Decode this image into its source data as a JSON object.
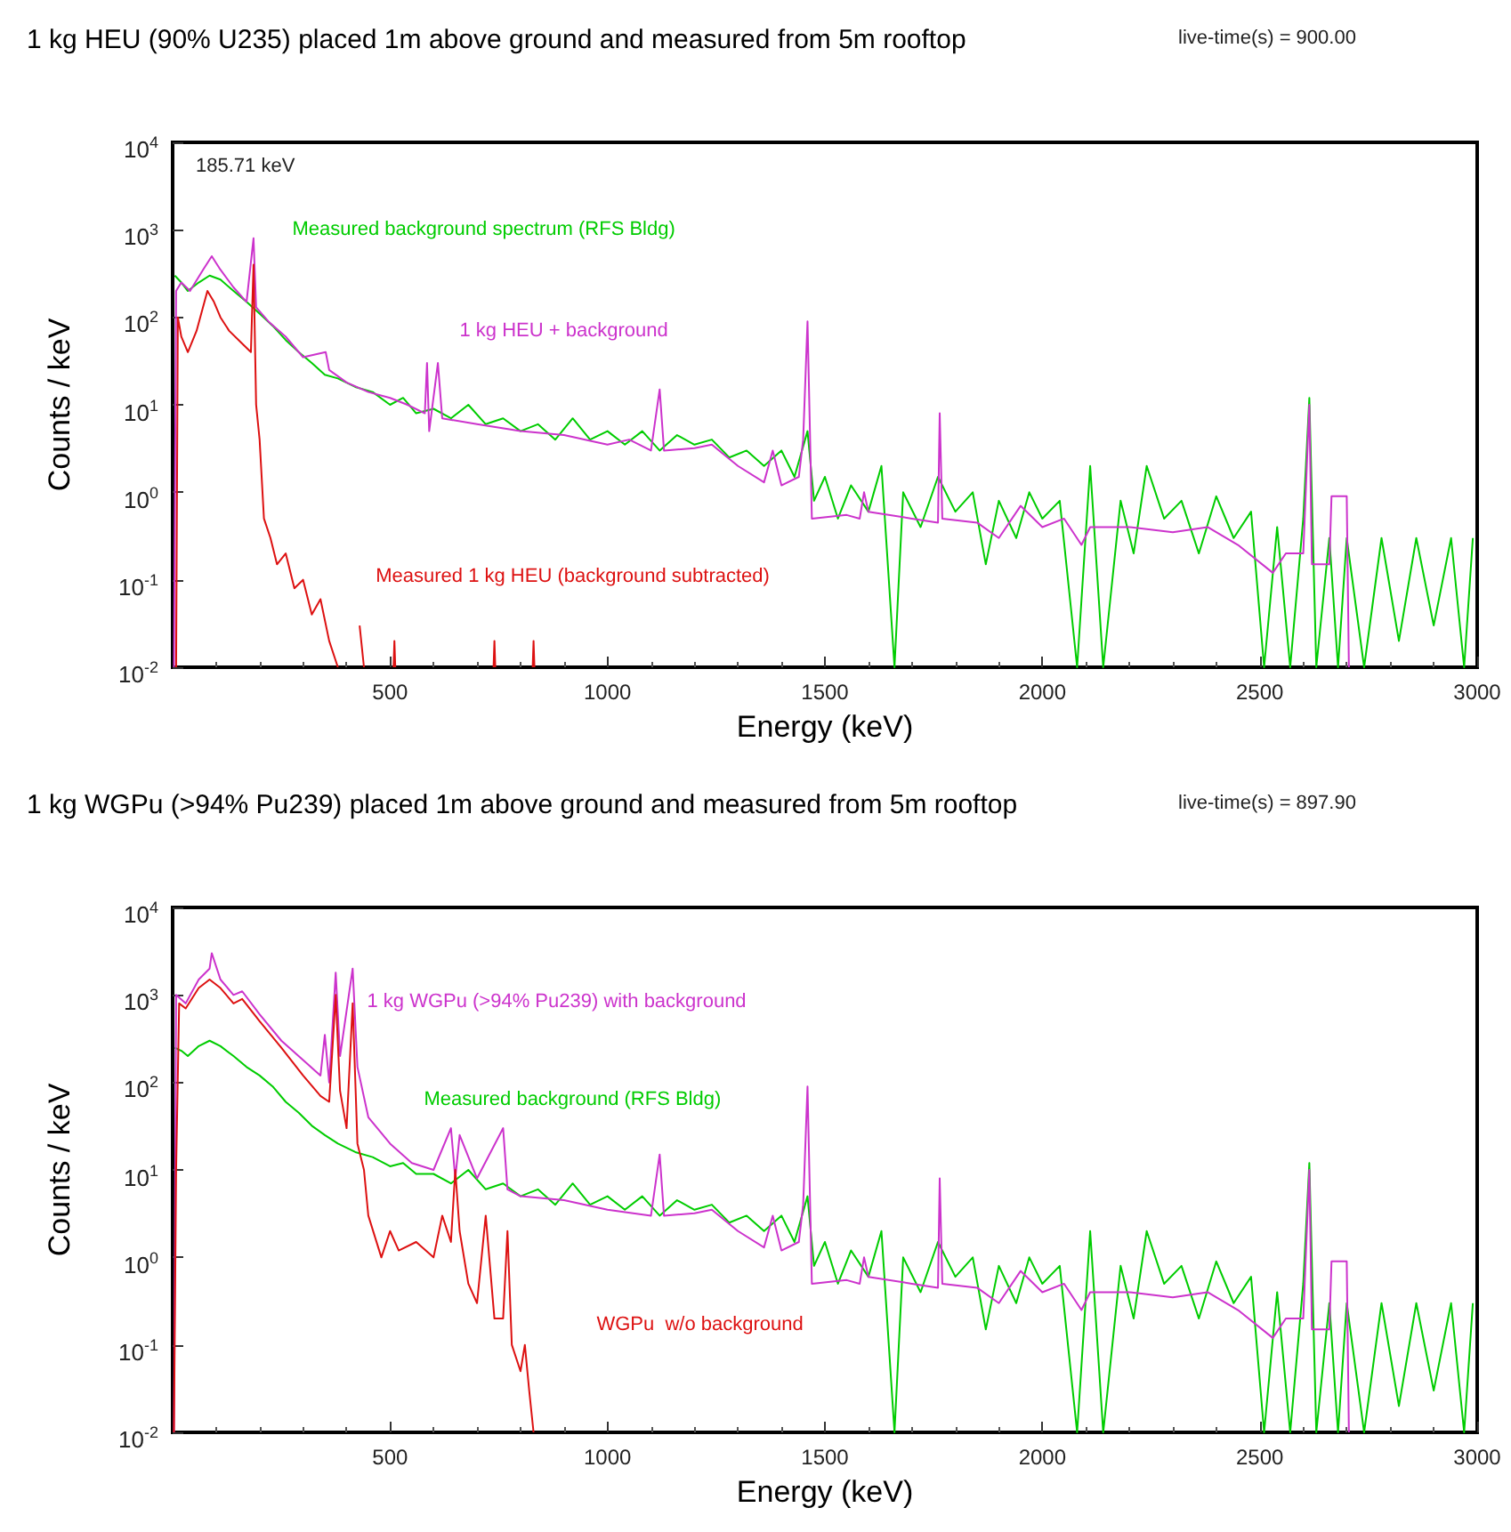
{
  "chart_data": [
    {
      "type": "line",
      "title": "1 kg HEU (90% U235) placed 1m above ground and measured from 5m rooftop",
      "xlabel": "Energy (keV)",
      "ylabel": "Counts / keV",
      "annotations": [
        "live-time(s) = 900.00",
        "185.71 keV"
      ],
      "log": "y",
      "xlim": [
        0,
        3000
      ],
      "xticks": [
        500,
        1000,
        1500,
        2000,
        2500,
        3000
      ],
      "ylim": [
        0.01,
        10000
      ],
      "yticks": [
        {
          "value": 0.01,
          "label": "10$^{-2}$"
        },
        {
          "value": 0.1,
          "label": "10$^{-1}$"
        },
        {
          "value": 1,
          "label": "10$^{0}$"
        },
        {
          "value": 10,
          "label": "10$^{1}$"
        },
        {
          "value": 100,
          "label": "10$^{2}$"
        },
        {
          "value": 1000,
          "label": "10$^{3}$"
        },
        {
          "value": 10000,
          "label": "10$^{4}$"
        }
      ],
      "series": [
        {
          "name": "Measured background spectrum (RFS Bldg)",
          "color": "#00cc00",
          "x": [
            5,
            20,
            35,
            60,
            85,
            110,
            140,
            170,
            200,
            230,
            260,
            290,
            320,
            350,
            380,
            420,
            460,
            500,
            530,
            560,
            600,
            640,
            680,
            720,
            760,
            800,
            840,
            880,
            920,
            960,
            1000,
            1040,
            1080,
            1120,
            1160,
            1200,
            1240,
            1280,
            1320,
            1360,
            1400,
            1430,
            1460,
            1475,
            1500,
            1530,
            1560,
            1600,
            1630,
            1660,
            1680,
            1720,
            1760,
            1800,
            1840,
            1870,
            1900,
            1940,
            1970,
            2000,
            2040,
            2080,
            2110,
            2140,
            2180,
            2210,
            2240,
            2280,
            2320,
            2360,
            2400,
            2440,
            2480,
            2510,
            2540,
            2570,
            2600,
            2614,
            2630,
            2660,
            2680,
            2700,
            2740,
            2780,
            2820,
            2860,
            2900,
            2940,
            2970,
            2990
          ],
          "values": [
            300,
            250,
            200,
            250,
            300,
            270,
            200,
            150,
            110,
            80,
            55,
            40,
            30,
            22,
            20,
            16,
            14,
            10,
            12,
            8,
            9,
            7,
            10,
            6,
            7,
            5,
            6,
            4,
            7,
            4,
            5,
            3.5,
            5,
            3,
            4.5,
            3.5,
            4,
            2.5,
            3,
            2,
            3,
            1.5,
            5,
            0.8,
            1.5,
            0.5,
            1.2,
            0.6,
            2,
            0.01,
            1,
            0.4,
            1.5,
            0.6,
            1,
            0.15,
            0.8,
            0.3,
            1,
            0.5,
            0.8,
            0.01,
            2,
            0.01,
            0.8,
            0.2,
            2,
            0.5,
            0.8,
            0.2,
            0.9,
            0.3,
            0.6,
            0.01,
            0.4,
            0.01,
            0.5,
            12,
            0.01,
            0.3,
            0.01,
            0.3,
            0.01,
            0.3,
            0.02,
            0.3,
            0.03,
            0.3,
            0.01,
            0.3
          ]
        },
        {
          "name": "1 kg HEU + background",
          "color": "#cc33cc",
          "x": [
            3,
            8,
            20,
            40,
            70,
            90,
            110,
            140,
            170,
            186,
            192,
            220,
            260,
            300,
            352,
            360,
            400,
            450,
            500,
            540,
            580,
            585,
            590,
            610,
            620,
            700,
            800,
            900,
            1000,
            1050,
            1100,
            1120,
            1130,
            1200,
            1240,
            1300,
            1360,
            1380,
            1400,
            1440,
            1450,
            1460,
            1470,
            1550,
            1580,
            1590,
            1600,
            1700,
            1760,
            1764,
            1770,
            1850,
            1900,
            1950,
            2000,
            2050,
            2090,
            2110,
            2200,
            2300,
            2380,
            2450,
            2530,
            2560,
            2600,
            2614,
            2620,
            2660,
            2665,
            2700,
            2705
          ],
          "values": [
            0.01,
            200,
            250,
            200,
            350,
            500,
            350,
            220,
            150,
            800,
            130,
            90,
            60,
            35,
            40,
            25,
            18,
            14,
            12,
            10,
            8,
            30,
            5,
            30,
            7,
            6,
            5,
            4.5,
            3.5,
            4,
            3,
            15,
            3,
            3.2,
            3.5,
            2,
            1.3,
            3,
            1.2,
            1.5,
            4,
            90,
            0.5,
            0.55,
            0.5,
            1,
            0.6,
            0.5,
            0.45,
            8,
            0.5,
            0.45,
            0.3,
            0.7,
            0.4,
            0.5,
            0.25,
            0.4,
            0.4,
            0.35,
            0.4,
            0.25,
            0.12,
            0.2,
            0.2,
            10,
            0.15,
            0.15,
            0.9,
            0.9,
            0.01
          ]
        },
        {
          "name": "Measured 1 kg HEU (background subtracted)",
          "color": "#dd1111",
          "x": [
            8,
            12,
            20,
            35,
            55,
            80,
            95,
            110,
            130,
            160,
            180,
            186,
            192,
            200,
            210,
            225,
            240,
            260,
            280,
            300,
            320,
            340,
            360,
            380,
            400,
            430,
            440,
            450,
            508,
            510,
            512,
            520,
            738,
            740,
            742,
            750,
            828,
            830,
            832
          ],
          "values": [
            0.01,
            100,
            60,
            40,
            70,
            200,
            150,
            100,
            70,
            50,
            40,
            400,
            10,
            4,
            0.5,
            0.3,
            0.15,
            0.2,
            0.08,
            0.1,
            0.04,
            0.06,
            0.02,
            0.01,
            null,
            0.03,
            0.01,
            null,
            0.01,
            0.02,
            0.01,
            null,
            0.01,
            0.02,
            0.01,
            null,
            0.01,
            0.02,
            0.01
          ]
        }
      ]
    },
    {
      "type": "line",
      "title": "1 kg WGPu (>94% Pu239) placed 1m above ground and measured from 5m rooftop",
      "xlabel": "Energy (keV)",
      "ylabel": "Counts / keV",
      "annotations": [
        "live-time(s) = 897.90"
      ],
      "log": "y",
      "xlim": [
        0,
        3000
      ],
      "xticks": [
        500,
        1000,
        1500,
        2000,
        2500,
        3000
      ],
      "ylim": [
        0.01,
        10000
      ],
      "yticks": [
        {
          "value": 0.01,
          "label": "10$^{-2}$"
        },
        {
          "value": 0.1,
          "label": "10$^{-1}$"
        },
        {
          "value": 1,
          "label": "10$^{0}$"
        },
        {
          "value": 10,
          "label": "10$^{1}$"
        },
        {
          "value": 100,
          "label": "10$^{2}$"
        },
        {
          "value": 1000,
          "label": "10$^{3}$"
        },
        {
          "value": 10000,
          "label": "10$^{4}$"
        }
      ],
      "series": [
        {
          "name": "Measured background (RFS Bldg)",
          "color": "#00cc00",
          "x": [
            5,
            20,
            35,
            60,
            85,
            110,
            140,
            170,
            200,
            230,
            260,
            290,
            320,
            350,
            380,
            420,
            460,
            500,
            530,
            560,
            600,
            640,
            680,
            720,
            760,
            800,
            840,
            880,
            920,
            960,
            1000,
            1040,
            1080,
            1120,
            1160,
            1200,
            1240,
            1280,
            1320,
            1360,
            1400,
            1430,
            1460,
            1475,
            1500,
            1530,
            1560,
            1600,
            1630,
            1660,
            1680,
            1720,
            1760,
            1800,
            1840,
            1870,
            1900,
            1940,
            1970,
            2000,
            2040,
            2080,
            2110,
            2140,
            2180,
            2210,
            2240,
            2280,
            2320,
            2360,
            2400,
            2440,
            2480,
            2510,
            2540,
            2570,
            2600,
            2614,
            2630,
            2660,
            2680,
            2700,
            2740,
            2780,
            2820,
            2860,
            2900,
            2940,
            2970,
            2990
          ],
          "values": [
            250,
            230,
            200,
            260,
            300,
            260,
            200,
            150,
            120,
            90,
            60,
            45,
            32,
            25,
            20,
            16,
            14,
            11,
            12,
            9,
            9,
            7,
            10,
            6,
            7,
            5,
            6,
            4,
            7,
            4,
            5,
            3.5,
            5,
            3,
            4.5,
            3.5,
            4,
            2.5,
            3,
            2,
            3,
            1.5,
            5,
            0.8,
            1.5,
            0.5,
            1.2,
            0.6,
            2,
            0.01,
            1,
            0.4,
            1.5,
            0.6,
            1,
            0.15,
            0.8,
            0.3,
            1,
            0.5,
            0.8,
            0.01,
            2,
            0.01,
            0.8,
            0.2,
            2,
            0.5,
            0.8,
            0.2,
            0.9,
            0.3,
            0.6,
            0.01,
            0.4,
            0.01,
            0.5,
            12,
            0.01,
            0.3,
            0.01,
            0.3,
            0.01,
            0.3,
            0.02,
            0.3,
            0.03,
            0.3,
            0.01,
            0.3
          ]
        },
        {
          "name": "1 kg WGPu (>94% Pu239) with background",
          "color": "#cc33cc",
          "x": [
            3,
            8,
            30,
            60,
            85,
            90,
            110,
            140,
            160,
            200,
            250,
            300,
            340,
            350,
            360,
            375,
            385,
            414,
            425,
            450,
            500,
            550,
            600,
            640,
            650,
            660,
            700,
            760,
            770,
            800,
            900,
            1000,
            1100,
            1120,
            1130,
            1200,
            1240,
            1300,
            1360,
            1380,
            1400,
            1440,
            1450,
            1460,
            1470,
            1550,
            1580,
            1590,
            1600,
            1700,
            1760,
            1764,
            1770,
            1850,
            1900,
            1950,
            2000,
            2050,
            2090,
            2110,
            2200,
            2300,
            2380,
            2450,
            2530,
            2560,
            2600,
            2614,
            2620,
            2660,
            2665,
            2700,
            2705
          ],
          "values": [
            0.01,
            1000,
            800,
            1500,
            2000,
            3000,
            1500,
            1000,
            1100,
            600,
            300,
            180,
            120,
            350,
            100,
            1800,
            200,
            2000,
            150,
            40,
            20,
            12,
            10,
            30,
            8,
            25,
            8,
            30,
            6,
            5,
            4.5,
            3.5,
            3,
            15,
            3,
            3.2,
            3.5,
            2,
            1.3,
            3,
            1.2,
            1.5,
            4,
            90,
            0.5,
            0.55,
            0.5,
            1,
            0.6,
            0.5,
            0.45,
            8,
            0.5,
            0.45,
            0.3,
            0.7,
            0.4,
            0.5,
            0.25,
            0.4,
            0.4,
            0.35,
            0.4,
            0.25,
            0.12,
            0.2,
            0.2,
            10,
            0.15,
            0.15,
            0.9,
            0.9,
            0.01
          ]
        },
        {
          "name": "WGPu  w/o background",
          "color": "#dd1111",
          "x": [
            3,
            8,
            15,
            30,
            60,
            85,
            110,
            140,
            160,
            200,
            250,
            300,
            340,
            360,
            375,
            385,
            400,
            414,
            425,
            440,
            450,
            480,
            500,
            520,
            560,
            600,
            620,
            640,
            650,
            660,
            680,
            700,
            720,
            740,
            760,
            770,
            780,
            800,
            810,
            820,
            830
          ],
          "values": [
            0.01,
            10,
            800,
            700,
            1200,
            1500,
            1200,
            800,
            900,
            500,
            250,
            120,
            70,
            60,
            1000,
            80,
            30,
            800,
            20,
            10,
            3,
            1,
            2,
            1.2,
            1.5,
            1,
            3,
            1.5,
            10,
            2,
            0.5,
            0.3,
            3,
            0.2,
            0.2,
            2,
            0.1,
            0.05,
            0.1,
            0.03,
            0.01
          ]
        }
      ]
    }
  ]
}
